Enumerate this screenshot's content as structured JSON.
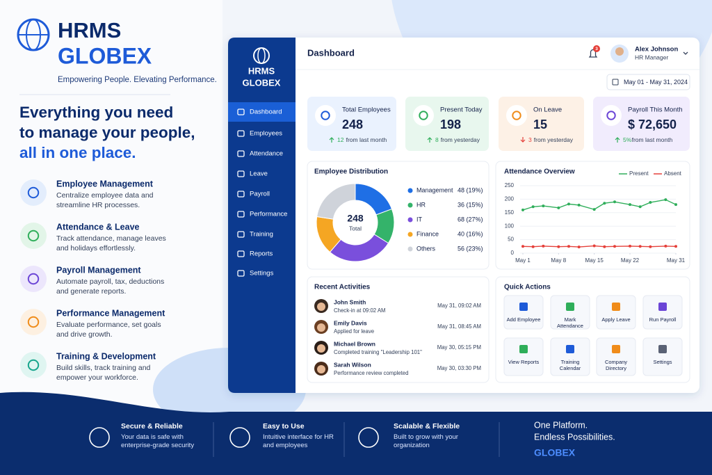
{
  "brand": {
    "name": "HRMS",
    "name2": "GLOBEX",
    "tagline": "Empowering People. Elevating Performance."
  },
  "hero": {
    "line1": "Everything you need",
    "line2": "to manage your people,",
    "line3": "all in one place."
  },
  "features": [
    {
      "title": "Employee Management",
      "desc": "Centralize employee data and streamline HR processes."
    },
    {
      "title": "Attendance & Leave",
      "desc": "Track attendance, manage leaves and holidays effortlessly."
    },
    {
      "title": "Payroll Management",
      "desc": "Automate payroll, tax, deductions and generate reports."
    },
    {
      "title": "Performance Management",
      "desc": "Evaluate performance, set goals and drive growth."
    },
    {
      "title": "Training & Development",
      "desc": "Build skills, track training and empower your workforce."
    }
  ],
  "dashboard": {
    "sidebar": {
      "brand1": "HRMS",
      "brand2": "GLOBEX",
      "nav": [
        "Dashboard",
        "Employees",
        "Attendance",
        "Leave",
        "Payroll",
        "Performance",
        "Training",
        "Reports",
        "Settings"
      ]
    },
    "title": "Dashboard",
    "notifications": 3,
    "user": {
      "name": "Alex Johnson",
      "role": "HR Manager"
    },
    "date_range": "May 01 - May 31, 2024",
    "stats": [
      {
        "label": "Total Employees",
        "value": "248",
        "change": "12",
        "note": "from last month"
      },
      {
        "label": "Present Today",
        "value": "198",
        "change": "8",
        "note": "from yesterday"
      },
      {
        "label": "On Leave",
        "value": "15",
        "change": "3",
        "note": "from yesterday"
      },
      {
        "label": "Payroll This Month",
        "value": "$ 72,650",
        "change": "5%",
        "note": "from last month"
      }
    ],
    "distribution": {
      "type": "pie",
      "title": "Employee Distribution",
      "center_value": 248,
      "center_label": "Total",
      "categories": [
        "Management",
        "HR",
        "IT",
        "Finance",
        "Others"
      ],
      "values": [
        48,
        36,
        68,
        40,
        56
      ],
      "value_labels": [
        "48 (19%)",
        "36 (15%)",
        "68 (27%)",
        "40 (16%)",
        "56 (23%)"
      ],
      "colors": [
        "#1f6fe5",
        "#34b36a",
        "#7a4fdc",
        "#f5a623",
        "#cfd3da"
      ]
    },
    "attendance": {
      "type": "line",
      "title": "Attendance Overview",
      "x": [
        1,
        3,
        5,
        8,
        10,
        12,
        15,
        17,
        19,
        22,
        24,
        26,
        29,
        31
      ],
      "series": [
        {
          "name": "Present",
          "color": "#2fae5a",
          "values": [
            160,
            172,
            175,
            168,
            182,
            178,
            162,
            185,
            190,
            180,
            172,
            188,
            198,
            180
          ]
        },
        {
          "name": "Absent",
          "color": "#e5403a",
          "values": [
            25,
            24,
            26,
            24,
            25,
            23,
            27,
            24,
            25,
            26,
            25,
            24,
            26,
            25
          ]
        }
      ],
      "xlim": [
        1,
        31
      ],
      "xticks": [
        {
          "value": 1,
          "label": "May 1"
        },
        {
          "value": 8,
          "label": "May 8"
        },
        {
          "value": 15,
          "label": "May 15"
        },
        {
          "value": 22,
          "label": "May 22"
        },
        {
          "value": 31,
          "label": "May 31"
        }
      ],
      "ylim": [
        0,
        250
      ],
      "yticks": [
        0,
        50,
        100,
        150,
        200,
        250
      ],
      "grid": true
    },
    "activities": {
      "title": "Recent Activities",
      "items": [
        {
          "name": "John Smith",
          "action": "Check-in at 09:02 AM",
          "time": "May 31, 09:02 AM"
        },
        {
          "name": "Emily Davis",
          "action": "Applied for leave",
          "time": "May 31, 08:45 AM"
        },
        {
          "name": "Michael Brown",
          "action": "Completed training \"Leadership 101\"",
          "time": "May 30, 05:15 PM"
        },
        {
          "name": "Sarah Wilson",
          "action": "Performance review completed",
          "time": "May 30, 03:30 PM"
        }
      ]
    },
    "quick_actions": {
      "title": "Quick Actions",
      "items": [
        "Add Employee",
        "Mark Attendance",
        "Apply Leave",
        "Run Payroll",
        "View Reports",
        "Training Calendar",
        "Company Directory",
        "Settings"
      ]
    }
  },
  "footer": {
    "items": [
      {
        "title": "Secure & Reliable",
        "desc": "Your data is safe with enterprise-grade security"
      },
      {
        "title": "Easy to Use",
        "desc": "Intuitive interface for HR and employees"
      },
      {
        "title": "Scalable & Flexible",
        "desc": "Built to grow with your organization"
      }
    ],
    "closing": {
      "line1": "One Platform.",
      "line2": "Endless Possibilities.",
      "brand": "GLOBEX"
    }
  }
}
